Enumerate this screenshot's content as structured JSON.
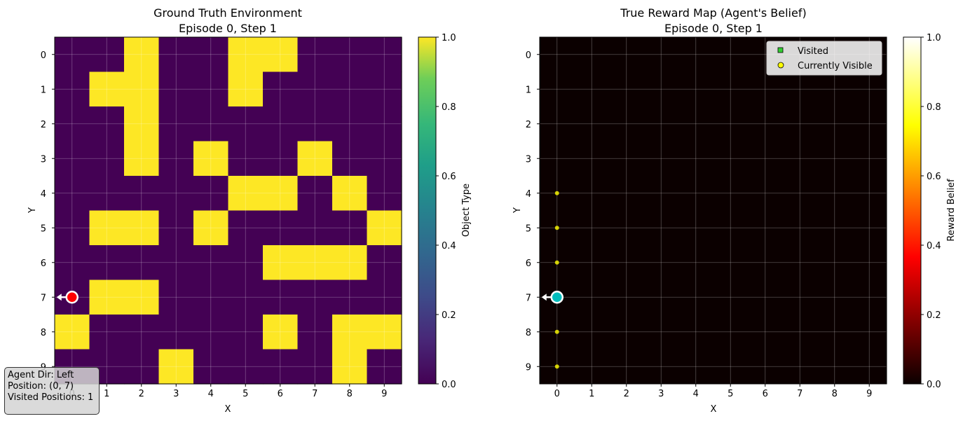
{
  "chart_data": [
    {
      "type": "heatmap",
      "title_line1": "Ground Truth Environment",
      "title_line2": "Episode 0, Step 1",
      "xlabel": "X",
      "ylabel": "Y",
      "x_ticks": [
        "0",
        "1",
        "2",
        "3",
        "4",
        "5",
        "6",
        "7",
        "8",
        "9"
      ],
      "y_ticks": [
        "0",
        "1",
        "2",
        "3",
        "4",
        "5",
        "6",
        "7",
        "8",
        "9"
      ],
      "grid": true,
      "colormap": "viridis",
      "colorbar_label": "Object Type",
      "colorbar_ticks": [
        "0.0",
        "0.2",
        "0.4",
        "0.6",
        "0.8",
        "1.0"
      ],
      "low_color": "#440154",
      "high_color": "#fde725",
      "values": [
        [
          0,
          0,
          1,
          0,
          0,
          1,
          1,
          0,
          0,
          0
        ],
        [
          0,
          1,
          1,
          0,
          0,
          1,
          0,
          0,
          0,
          0
        ],
        [
          0,
          0,
          1,
          0,
          0,
          0,
          0,
          0,
          0,
          0
        ],
        [
          0,
          0,
          1,
          0,
          1,
          0,
          0,
          1,
          0,
          0
        ],
        [
          0,
          0,
          0,
          0,
          0,
          1,
          1,
          0,
          1,
          0
        ],
        [
          0,
          1,
          1,
          0,
          1,
          0,
          0,
          0,
          0,
          1
        ],
        [
          0,
          0,
          0,
          0,
          0,
          0,
          1,
          1,
          1,
          0
        ],
        [
          0,
          1,
          1,
          0,
          0,
          0,
          0,
          0,
          0,
          0
        ],
        [
          1,
          0,
          0,
          0,
          0,
          0,
          1,
          0,
          1,
          1
        ],
        [
          0,
          0,
          0,
          1,
          0,
          0,
          0,
          0,
          1,
          0
        ]
      ],
      "agent": {
        "x": 0,
        "y": 7,
        "direction": "left",
        "color": "#ff0000"
      }
    },
    {
      "type": "heatmap",
      "title_line1": "True Reward Map (Agent's Belief)",
      "title_line2": "Episode 0, Step 1",
      "xlabel": "X",
      "ylabel": "Y",
      "x_ticks": [
        "0",
        "1",
        "2",
        "3",
        "4",
        "5",
        "6",
        "7",
        "8",
        "9"
      ],
      "y_ticks": [
        "0",
        "1",
        "2",
        "3",
        "4",
        "5",
        "6",
        "7",
        "8",
        "9"
      ],
      "grid": true,
      "colormap": "hot",
      "colorbar_label": "Reward Belief",
      "colorbar_ticks": [
        "0.0",
        "0.2",
        "0.4",
        "0.6",
        "0.8",
        "1.0"
      ],
      "background_color": "#0b0000",
      "legend": {
        "placement": "upper-right",
        "items": [
          {
            "label": "Visited",
            "marker": "square",
            "color": "#32cd32"
          },
          {
            "label": "Currently Visible",
            "marker": "circle",
            "color": "#ffff00"
          }
        ]
      },
      "visible_points": [
        {
          "x": 0,
          "y": 4
        },
        {
          "x": 0,
          "y": 5
        },
        {
          "x": 0,
          "y": 6
        },
        {
          "x": 0,
          "y": 8
        },
        {
          "x": 0,
          "y": 9
        }
      ],
      "agent": {
        "x": 0,
        "y": 7,
        "direction": "left",
        "color": "#00bcbc"
      }
    }
  ],
  "info": {
    "line1": "Agent Dir: Left",
    "line2": "Position: (0, 7)",
    "line3": "Visited Positions: 1"
  }
}
